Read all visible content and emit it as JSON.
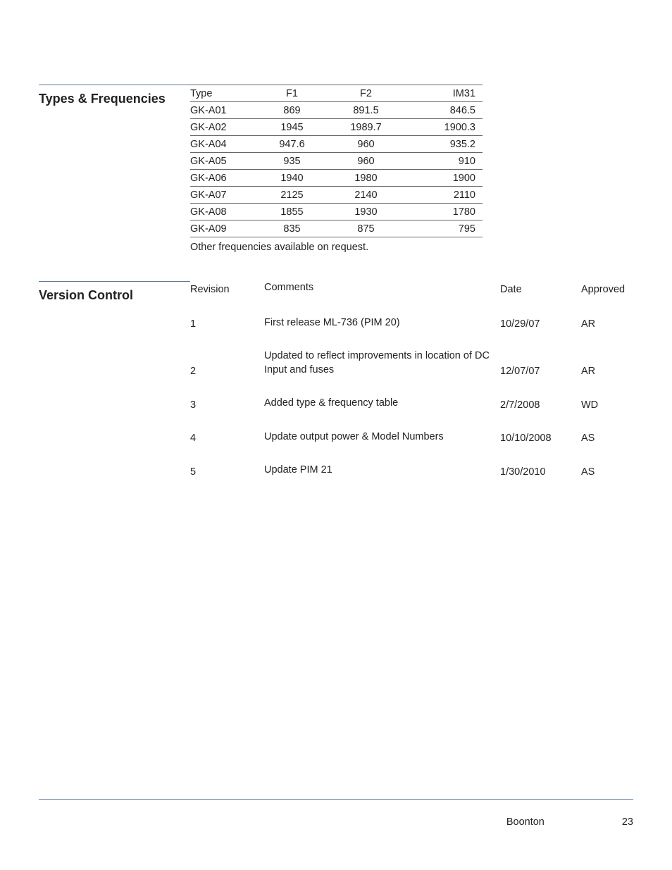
{
  "colors": {
    "text": "#222222",
    "rule": "#5a7a9a",
    "row_border": "#666666",
    "background": "#ffffff"
  },
  "typography": {
    "body_fontsize_pt": 11,
    "heading_fontsize_pt": 13.5,
    "heading_fontweight": 600,
    "font_family": "Segoe UI / Lucida Sans"
  },
  "sections": {
    "frequencies": {
      "heading": "Types & Frequencies",
      "table": {
        "type": "table",
        "columns": [
          "Type",
          "F1",
          "F2",
          "IM31"
        ],
        "column_align": [
          "left",
          "center",
          "center",
          "right"
        ],
        "rows": [
          [
            "GK-A01",
            "869",
            "891.5",
            "846.5"
          ],
          [
            "GK-A02",
            "1945",
            "1989.7",
            "1900.3"
          ],
          [
            "GK-A04",
            "947.6",
            "960",
            "935.2"
          ],
          [
            "GK-A05",
            "935",
            "960",
            "910"
          ],
          [
            "GK-A06",
            "1940",
            "1980",
            "1900"
          ],
          [
            "GK-A07",
            "2125",
            "2140",
            "2110"
          ],
          [
            "GK-A08",
            "1855",
            "1930",
            "1780"
          ],
          [
            "GK-A09",
            "835",
            "875",
            "795"
          ]
        ],
        "border_color": "#666666"
      },
      "note": "Other frequencies available on request."
    },
    "version_control": {
      "heading": "Version Control",
      "table": {
        "type": "table",
        "columns": [
          "Revision",
          "Comments",
          "Date",
          "Approved"
        ],
        "column_align": [
          "left",
          "left",
          "left",
          "right"
        ],
        "rows": [
          {
            "rev": "1",
            "comments": "First release ML-736 (PIM 20)",
            "date": "10/29/07",
            "approved": "AR"
          },
          {
            "rev": "2",
            "comments": "Updated to reflect improvements in location of DC Input and fuses",
            "date": "12/07/07",
            "approved": "AR"
          },
          {
            "rev": "3",
            "comments": "Added type & frequency table",
            "date": "2/7/2008",
            "approved": "WD"
          },
          {
            "rev": "4",
            "comments": "Update output power & Model Numbers",
            "date": "10/10/2008",
            "approved": "AS"
          },
          {
            "rev": "5",
            "comments": "Update PIM 21",
            "date": "1/30/2010",
            "approved": "AS"
          }
        ]
      }
    }
  },
  "footer": {
    "brand": "Boonton",
    "page_number": "23"
  }
}
